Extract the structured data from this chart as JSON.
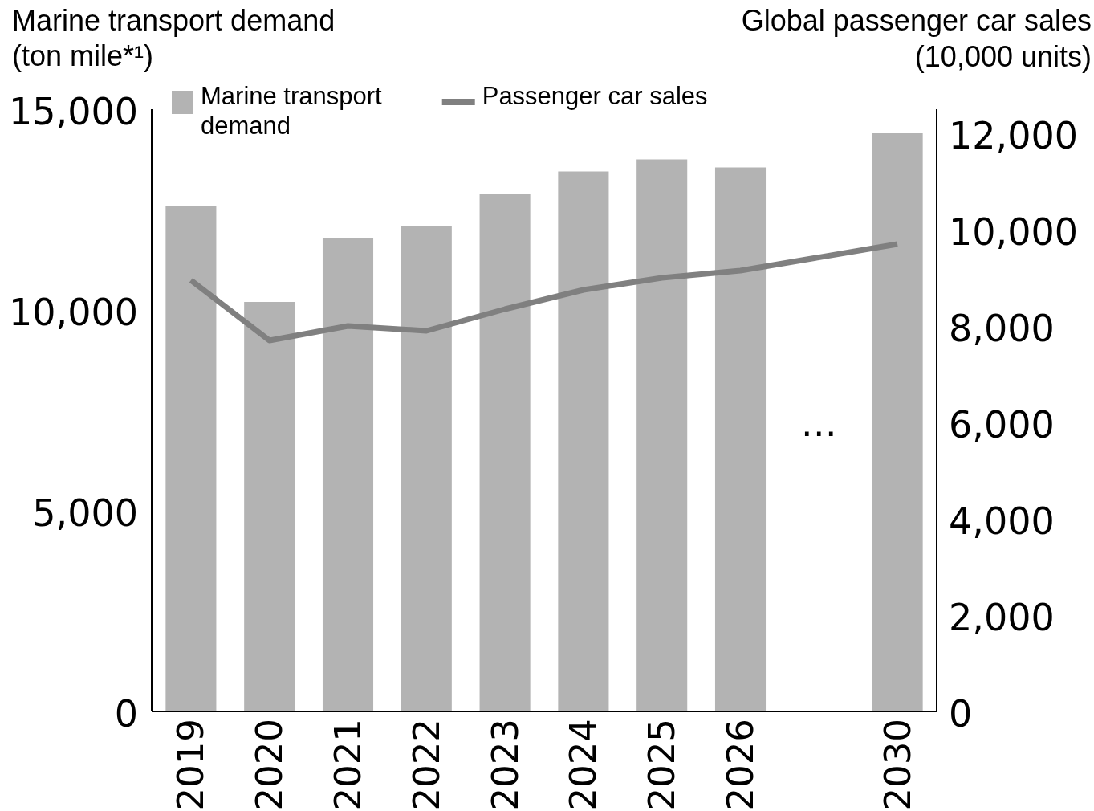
{
  "chart_data": {
    "type": "bar",
    "categories": [
      "2019",
      "2020",
      "2021",
      "2022",
      "2023",
      "2024",
      "2025",
      "2026",
      null,
      "2030"
    ],
    "series": [
      {
        "name": "Marine transport demand",
        "color": "#b3b3b3",
        "values": [
          12600,
          10200,
          11800,
          12100,
          12900,
          13450,
          13750,
          13550,
          null,
          14400
        ]
      },
      {
        "name": "Passenger car sales",
        "type": "line",
        "axis": "y2",
        "color": "#808080",
        "values": [
          8950,
          7700,
          8000,
          7900,
          8350,
          8750,
          9000,
          9150,
          null,
          9700
        ]
      }
    ],
    "ylabel": "Marine transport demand (ton mile*¹)",
    "y2label": "Global passenger car sales (10,000 units)",
    "ylim": [
      0,
      15000
    ],
    "yticks": [
      0,
      {
        "value": 5000,
        "label": "5,000"
      },
      {
        "value": 10000,
        "label": "10,000"
      },
      {
        "value": 15000,
        "label": "15,000"
      }
    ],
    "y2lim": [
      0,
      12500
    ],
    "y2ticks": [
      0,
      {
        "value": 2000,
        "label": "2,000"
      },
      {
        "value": 4000,
        "label": "4,000"
      },
      {
        "value": 6000,
        "label": "6,000"
      },
      {
        "value": 8000,
        "label": "8,000"
      },
      {
        "value": 10000,
        "label": "10,000"
      },
      {
        "value": 12000,
        "label": "12,000"
      }
    ],
    "annotations": [
      "…"
    ],
    "legend": "top"
  }
}
